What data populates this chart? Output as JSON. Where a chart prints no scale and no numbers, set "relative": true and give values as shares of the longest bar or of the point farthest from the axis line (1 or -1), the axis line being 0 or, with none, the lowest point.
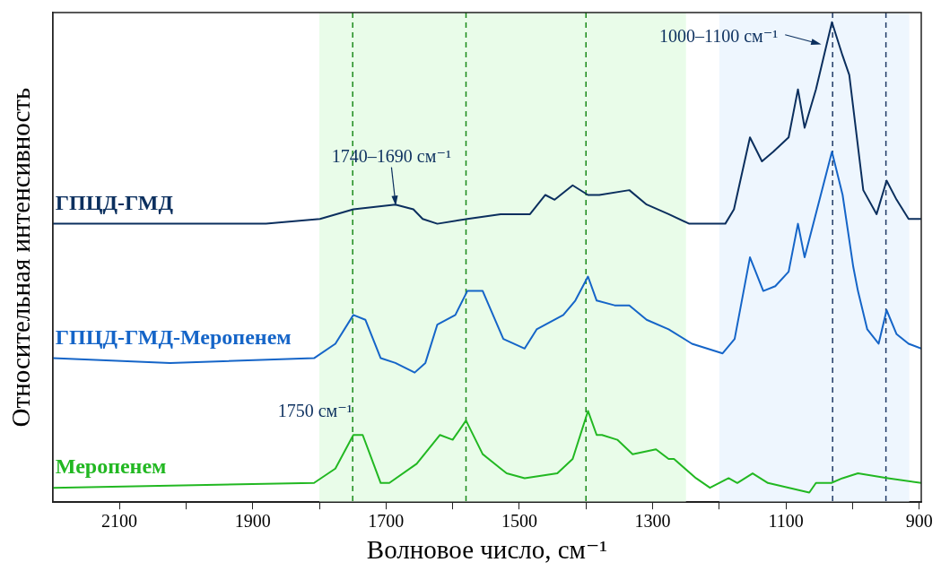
{
  "chart_data": {
    "type": "line",
    "relative": true,
    "xlabel": "Волновое число, см⁻¹",
    "ylabel": "Относительная интенсивность",
    "xlim": [
      2200,
      897
    ],
    "xticks": [
      {
        "value": 2100,
        "label": "2100"
      },
      {
        "value": 2000,
        "label": null
      },
      {
        "value": 1900,
        "label": "1900"
      },
      {
        "value": 1800,
        "label": null
      },
      {
        "value": 1700,
        "label": "1700"
      },
      {
        "value": 1600,
        "label": null
      },
      {
        "value": 1500,
        "label": "1500"
      },
      {
        "value": 1400,
        "label": null
      },
      {
        "value": 1300,
        "label": "1300"
      },
      {
        "value": 1200,
        "label": null
      },
      {
        "value": 1100,
        "label": "1100"
      },
      {
        "value": 1000,
        "label": null
      },
      {
        "value": 900,
        "label": "900"
      }
    ],
    "tick_labels": "x",
    "grid": false,
    "marker": "none",
    "line_style": "solid",
    "series": [
      {
        "name": "ГПЦД-ГМД",
        "color": "#0b2f5e",
        "x": [
          2200,
          1880,
          1799,
          1749,
          1686,
          1659,
          1645,
          1623,
          1578,
          1528,
          1484,
          1461,
          1447,
          1420,
          1397,
          1380,
          1335,
          1309,
          1276,
          1245,
          1222,
          1191,
          1178,
          1154,
          1136,
          1119,
          1096,
          1082,
          1072,
          1055,
          1031,
          1015,
          1005,
          984,
          964,
          949,
          934,
          916,
          897
        ],
        "values": [
          0.58,
          0.58,
          0.59,
          0.61,
          0.62,
          0.61,
          0.59,
          0.58,
          0.59,
          0.6,
          0.6,
          0.64,
          0.63,
          0.66,
          0.64,
          0.64,
          0.65,
          0.62,
          0.6,
          0.58,
          0.58,
          0.58,
          0.61,
          0.76,
          0.71,
          0.73,
          0.76,
          0.86,
          0.78,
          0.86,
          1,
          0.93,
          0.89,
          0.65,
          0.6,
          0.67,
          0.63,
          0.59,
          0.59
        ]
      },
      {
        "name": "ГПЦД-ГМД-Меропенем",
        "color": "#1565c8",
        "x": [
          2200,
          2024,
          1808,
          1776,
          1749,
          1731,
          1708,
          1686,
          1657,
          1641,
          1623,
          1596,
          1578,
          1555,
          1524,
          1492,
          1474,
          1434,
          1416,
          1397,
          1384,
          1357,
          1335,
          1309,
          1276,
          1241,
          1195,
          1177,
          1154,
          1134,
          1116,
          1096,
          1082,
          1072,
          1031,
          1015,
          999,
          992,
          978,
          961,
          949,
          934,
          916,
          897
        ],
        "values": [
          0.3,
          0.29,
          0.3,
          0.33,
          0.39,
          0.38,
          0.3,
          0.29,
          0.27,
          0.29,
          0.37,
          0.39,
          0.44,
          0.44,
          0.34,
          0.32,
          0.36,
          0.39,
          0.42,
          0.47,
          0.42,
          0.41,
          0.41,
          0.38,
          0.36,
          0.33,
          0.31,
          0.34,
          0.51,
          0.44,
          0.45,
          0.48,
          0.58,
          0.51,
          0.73,
          0.64,
          0.49,
          0.44,
          0.36,
          0.33,
          0.4,
          0.35,
          0.33,
          0.32
        ]
      },
      {
        "name": "Меропенем",
        "color": "#22b822",
        "x": [
          2200,
          1808,
          1776,
          1749,
          1735,
          1708,
          1695,
          1654,
          1619,
          1600,
          1580,
          1555,
          1528,
          1519,
          1492,
          1443,
          1420,
          1397,
          1384,
          1376,
          1353,
          1330,
          1295,
          1276,
          1268,
          1235,
          1214,
          1186,
          1173,
          1150,
          1127,
          1065,
          1055,
          1032,
          1015,
          992,
          947,
          897
        ],
        "values": [
          0.03,
          0.04,
          0.07,
          0.14,
          0.14,
          0.04,
          0.04,
          0.08,
          0.14,
          0.13,
          0.17,
          0.1,
          0.07,
          0.06,
          0.05,
          0.06,
          0.09,
          0.19,
          0.14,
          0.14,
          0.13,
          0.1,
          0.11,
          0.09,
          0.09,
          0.05,
          0.03,
          0.05,
          0.04,
          0.06,
          0.04,
          0.02,
          0.04,
          0.04,
          0.05,
          0.06,
          0.05,
          0.04
        ]
      }
    ],
    "bands": [
      {
        "axis": "x",
        "from": 1800,
        "to": 1250,
        "color": "#e9fce9"
      },
      {
        "axis": "x",
        "from": 1200,
        "to": 915,
        "color": "#eef6fe"
      }
    ],
    "ref_lines": [
      {
        "axis": "x",
        "value": 1750,
        "color": "#1a8a1a",
        "line_style": "dashed"
      },
      {
        "axis": "x",
        "value": 1580,
        "color": "#1a8a1a",
        "line_style": "dashed"
      },
      {
        "axis": "x",
        "value": 1400,
        "color": "#1a8a1a",
        "line_style": "dashed"
      },
      {
        "axis": "x",
        "value": 1030,
        "color": "#1f3a66",
        "line_style": "dashed"
      },
      {
        "axis": "x",
        "value": 950,
        "color": "#1f3a66",
        "line_style": "dashed"
      }
    ],
    "annotations": [
      "1740–1690 см⁻¹",
      "1000–1100 см⁻¹",
      "1750 см⁻¹"
    ]
  }
}
